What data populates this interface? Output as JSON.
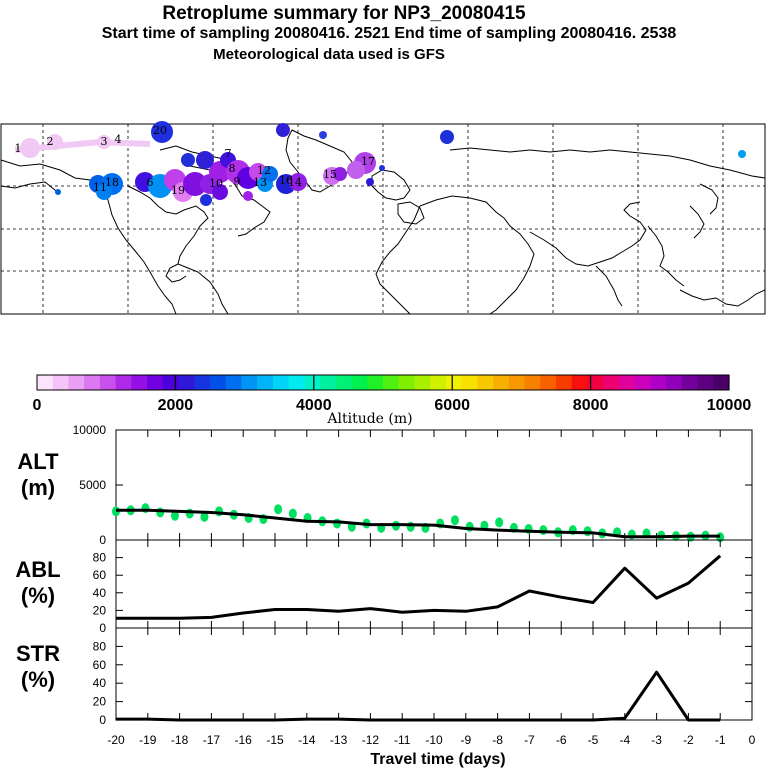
{
  "header": {
    "title": "Retroplume summary for NP3_20080415",
    "subtitle": "Start time of sampling 20080416.  2521     End time of sampling 20080416.  2538",
    "met": "Meteorological data used is GFS"
  },
  "colorbar": {
    "title": "Altitude (m)",
    "tick_labels": [
      "0",
      "2000",
      "4000",
      "6000",
      "8000",
      "10000"
    ],
    "colors": [
      "#fce4fc",
      "#f6c4f8",
      "#eaa0f4",
      "#dc78f0",
      "#c850ec",
      "#b028e8",
      "#9410e4",
      "#7000e0",
      "#4c00dc",
      "#3018d8",
      "#1834e0",
      "#0050e8",
      "#0070f0",
      "#0094f4",
      "#00b4f8",
      "#00d4f8",
      "#00ecf0",
      "#00f0c8",
      "#00f0a0",
      "#00f078",
      "#00f050",
      "#20f028",
      "#50f010",
      "#80f000",
      "#a8f000",
      "#d0f000",
      "#f0f000",
      "#f8e000",
      "#f8c800",
      "#f8b000",
      "#f89800",
      "#f88000",
      "#f86000",
      "#f83c00",
      "#f81010",
      "#f00040",
      "#ec0070",
      "#e0009c",
      "#cc00bc",
      "#b000c8",
      "#9000b8",
      "#74009c",
      "#5c0080",
      "#480068"
    ]
  },
  "map": {
    "labels": [
      "1",
      "2",
      "3",
      "4",
      "6",
      "7",
      "8",
      "9",
      "10",
      "11",
      "12",
      "13",
      "14",
      "15",
      "16",
      "17",
      "18",
      "19",
      "20"
    ]
  },
  "chart_data": [
    {
      "type": "line",
      "name": "ALT",
      "title": "ALT",
      "ylabel": "(m)",
      "ylim": [
        0,
        10000
      ],
      "yticks": [
        "0",
        "5000",
        "10000"
      ],
      "x": [
        -20,
        -19,
        -18,
        -17,
        -16,
        -15,
        -14,
        -13,
        -12,
        -11,
        -10,
        -9,
        -8,
        -7,
        -6,
        -5,
        -4,
        -3,
        -2,
        -1
      ],
      "values": [
        2700,
        2700,
        2600,
        2500,
        2300,
        2000,
        1700,
        1650,
        1400,
        1400,
        1350,
        1050,
        900,
        800,
        700,
        650,
        300,
        300,
        350,
        350
      ],
      "scatter": [
        2600,
        2700,
        2900,
        2500,
        2200,
        2400,
        2100,
        2600,
        2300,
        2000,
        1900,
        2800,
        2400,
        2000,
        1700,
        1500,
        1200,
        1500,
        1100,
        1300,
        1200,
        1100,
        1500,
        1800,
        1200,
        1300,
        1600,
        1100,
        1000,
        900,
        700,
        900,
        800,
        600,
        700,
        500,
        600,
        400,
        350,
        300,
        400,
        250
      ]
    },
    {
      "type": "line",
      "name": "ABL",
      "title": "ABL",
      "ylabel": "(%)",
      "ylim": [
        0,
        100
      ],
      "yticks": [
        "0",
        "20",
        "40",
        "60",
        "80"
      ],
      "x": [
        -20,
        -19,
        -18,
        -17,
        -16,
        -15,
        -14,
        -13,
        -12,
        -11,
        -10,
        -9,
        -8,
        -7,
        -6,
        -5,
        -4,
        -3,
        -2,
        -1
      ],
      "values": [
        11,
        11,
        11,
        12,
        17,
        21,
        21,
        19,
        22,
        18,
        20,
        19,
        24,
        42,
        35,
        29,
        68,
        34,
        51,
        82
      ]
    },
    {
      "type": "line",
      "name": "STR",
      "title": "STR",
      "ylabel": "(%)",
      "ylim": [
        0,
        100
      ],
      "yticks": [
        "0",
        "20",
        "40",
        "60",
        "80"
      ],
      "x": [
        -20,
        -19,
        -18,
        -17,
        -16,
        -15,
        -14,
        -13,
        -12,
        -11,
        -10,
        -9,
        -8,
        -7,
        -6,
        -5,
        -4,
        -3,
        -2,
        -1
      ],
      "values": [
        1,
        1,
        0,
        0,
        0,
        0,
        1,
        1,
        0,
        0,
        0,
        0,
        0,
        0,
        0,
        0,
        2,
        52,
        0,
        0
      ],
      "xlabel": "Travel time (days)",
      "xticks": [
        "-20",
        "-19",
        "-18",
        "-17",
        "-16",
        "-15",
        "-14",
        "-13",
        "-12",
        "-11",
        "-10",
        "-9",
        "-8",
        "-7",
        "-6",
        "-5",
        "-4",
        "-3",
        "-2",
        "-1",
        "0"
      ]
    }
  ]
}
